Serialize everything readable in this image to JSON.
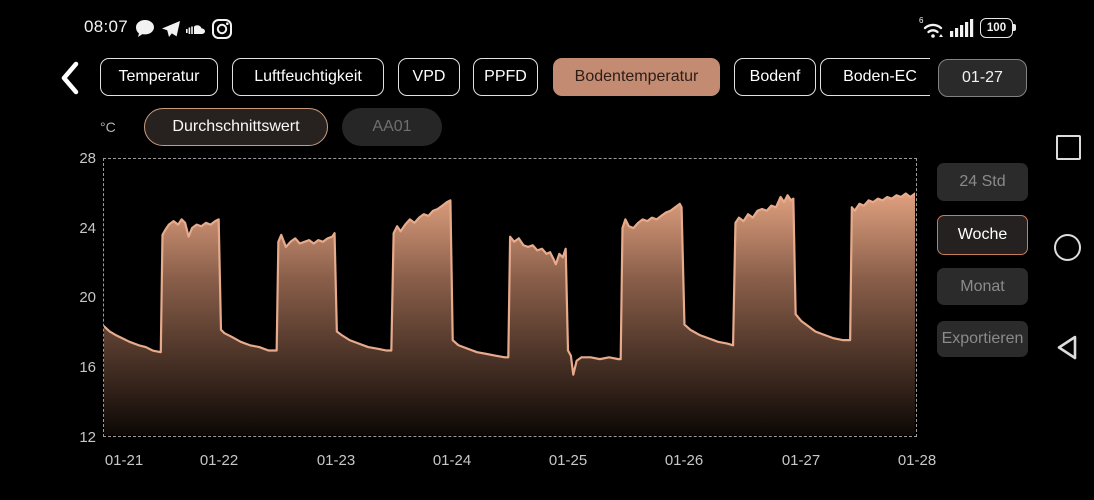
{
  "status_bar": {
    "time": "08:07",
    "left_icons": [
      "chat-icon",
      "telegram-icon",
      "soundcloud-icon",
      "instagram-icon"
    ],
    "wifi_label": "6",
    "battery_level": "100"
  },
  "header": {
    "tabs": [
      {
        "label": "Temperatur",
        "selected": false
      },
      {
        "label": "Luftfeuchtigkeit",
        "selected": false
      },
      {
        "label": "VPD",
        "selected": false
      },
      {
        "label": "PPFD",
        "selected": false
      },
      {
        "label": "Bodentemperatur",
        "selected": true
      },
      {
        "label": "Bodenf",
        "selected": false
      },
      {
        "label": "Boden-EC",
        "selected": false
      }
    ],
    "date_button": "01-27"
  },
  "controls": {
    "unit_label": "°C",
    "toggles": [
      {
        "label": "Durchschnittswert",
        "active": true
      },
      {
        "label": "AA01",
        "active": false
      }
    ]
  },
  "side_panel": {
    "buttons": [
      {
        "label": "24 Std",
        "selected": false
      },
      {
        "label": "Woche",
        "selected": true
      },
      {
        "label": "Monat",
        "selected": false
      },
      {
        "label": "Exportieren",
        "selected": false
      }
    ]
  },
  "chart_data": {
    "type": "area",
    "title": "Bodentemperatur Durchschnittswert, Woche",
    "ylabel": "°C",
    "ylim": [
      12,
      28
    ],
    "x_domain": [
      0,
      7
    ],
    "grid": false,
    "yticks": [
      "28",
      "24",
      "20",
      "16",
      "12"
    ],
    "xticks": [
      "01-21",
      "01-22",
      "01-23",
      "01-24",
      "01-25",
      "01-26",
      "01-27",
      "01-28"
    ],
    "colors": {
      "line": "#e7ab8c",
      "gradient_top": "#dfa07f",
      "gradient_mid": "#8a5f4a",
      "gradient_bottom": "#0d0805"
    },
    "series": [
      {
        "name": "Durchschnittswert",
        "points": [
          [
            0,
            18.3
          ],
          [
            0.05,
            18.0
          ],
          [
            0.1,
            17.8
          ],
          [
            0.16,
            17.6
          ],
          [
            0.22,
            17.4
          ],
          [
            0.3,
            17.2
          ],
          [
            0.36,
            17.1
          ],
          [
            0.42,
            16.9
          ],
          [
            0.49,
            16.8
          ],
          [
            0.505,
            23.6
          ],
          [
            0.53,
            23.9
          ],
          [
            0.56,
            24.2
          ],
          [
            0.6,
            24.4
          ],
          [
            0.64,
            24.2
          ],
          [
            0.67,
            24.5
          ],
          [
            0.7,
            24.3
          ],
          [
            0.73,
            23.5
          ],
          [
            0.76,
            24.0
          ],
          [
            0.8,
            24.2
          ],
          [
            0.84,
            24.1
          ],
          [
            0.88,
            24.3
          ],
          [
            0.92,
            24.2
          ],
          [
            0.96,
            24.4
          ],
          [
            0.99,
            24.5
          ],
          [
            1.01,
            18.1
          ],
          [
            1.04,
            17.9
          ],
          [
            1.1,
            17.7
          ],
          [
            1.18,
            17.4
          ],
          [
            1.26,
            17.2
          ],
          [
            1.34,
            17.1
          ],
          [
            1.42,
            16.9
          ],
          [
            1.49,
            16.9
          ],
          [
            1.505,
            23.2
          ],
          [
            1.53,
            23.6
          ],
          [
            1.57,
            22.9
          ],
          [
            1.61,
            23.2
          ],
          [
            1.65,
            23.4
          ],
          [
            1.69,
            23.1
          ],
          [
            1.73,
            23.2
          ],
          [
            1.77,
            23.3
          ],
          [
            1.81,
            23.1
          ],
          [
            1.85,
            23.3
          ],
          [
            1.89,
            23.2
          ],
          [
            1.93,
            23.4
          ],
          [
            1.97,
            23.5
          ],
          [
            1.99,
            23.7
          ],
          [
            2.01,
            18.0
          ],
          [
            2.05,
            17.8
          ],
          [
            2.12,
            17.5
          ],
          [
            2.2,
            17.3
          ],
          [
            2.28,
            17.1
          ],
          [
            2.36,
            17.0
          ],
          [
            2.44,
            16.9
          ],
          [
            2.48,
            16.9
          ],
          [
            2.5,
            23.7
          ],
          [
            2.53,
            24.1
          ],
          [
            2.56,
            23.8
          ],
          [
            2.6,
            24.2
          ],
          [
            2.64,
            24.5
          ],
          [
            2.68,
            24.3
          ],
          [
            2.72,
            24.6
          ],
          [
            2.76,
            24.8
          ],
          [
            2.8,
            24.7
          ],
          [
            2.84,
            25.0
          ],
          [
            2.88,
            25.1
          ],
          [
            2.92,
            25.3
          ],
          [
            2.96,
            25.5
          ],
          [
            2.99,
            25.6
          ],
          [
            3.01,
            17.5
          ],
          [
            3.06,
            17.2
          ],
          [
            3.14,
            17.0
          ],
          [
            3.22,
            16.8
          ],
          [
            3.3,
            16.7
          ],
          [
            3.38,
            16.6
          ],
          [
            3.46,
            16.5
          ],
          [
            3.49,
            16.5
          ],
          [
            3.505,
            23.5
          ],
          [
            3.54,
            23.2
          ],
          [
            3.58,
            23.4
          ],
          [
            3.62,
            23.0
          ],
          [
            3.66,
            22.9
          ],
          [
            3.7,
            23.0
          ],
          [
            3.74,
            22.7
          ],
          [
            3.78,
            22.8
          ],
          [
            3.82,
            22.5
          ],
          [
            3.85,
            22.6
          ],
          [
            3.88,
            22.2
          ],
          [
            3.9,
            21.9
          ],
          [
            3.93,
            22.5
          ],
          [
            3.96,
            22.3
          ],
          [
            3.985,
            22.8
          ],
          [
            4.005,
            16.9
          ],
          [
            4.03,
            16.6
          ],
          [
            4.05,
            15.5
          ],
          [
            4.08,
            16.3
          ],
          [
            4.12,
            16.5
          ],
          [
            4.2,
            16.5
          ],
          [
            4.28,
            16.4
          ],
          [
            4.36,
            16.5
          ],
          [
            4.44,
            16.4
          ],
          [
            4.46,
            16.4
          ],
          [
            4.475,
            24.0
          ],
          [
            4.5,
            24.5
          ],
          [
            4.53,
            24.1
          ],
          [
            4.57,
            24.0
          ],
          [
            4.61,
            24.3
          ],
          [
            4.65,
            24.5
          ],
          [
            4.69,
            24.4
          ],
          [
            4.73,
            24.6
          ],
          [
            4.77,
            24.5
          ],
          [
            4.81,
            24.7
          ],
          [
            4.85,
            24.9
          ],
          [
            4.89,
            25.0
          ],
          [
            4.93,
            25.2
          ],
          [
            4.97,
            25.4
          ],
          [
            4.985,
            25.2
          ],
          [
            5.01,
            18.4
          ],
          [
            5.06,
            18.1
          ],
          [
            5.14,
            17.8
          ],
          [
            5.22,
            17.6
          ],
          [
            5.3,
            17.4
          ],
          [
            5.38,
            17.3
          ],
          [
            5.43,
            17.2
          ],
          [
            5.45,
            24.3
          ],
          [
            5.48,
            24.6
          ],
          [
            5.52,
            24.4
          ],
          [
            5.56,
            24.8
          ],
          [
            5.6,
            24.6
          ],
          [
            5.64,
            25.0
          ],
          [
            5.68,
            25.1
          ],
          [
            5.72,
            25.0
          ],
          [
            5.76,
            25.3
          ],
          [
            5.8,
            25.2
          ],
          [
            5.84,
            25.8
          ],
          [
            5.87,
            25.5
          ],
          [
            5.9,
            25.9
          ],
          [
            5.93,
            25.6
          ],
          [
            5.95,
            25.7
          ],
          [
            5.97,
            19.0
          ],
          [
            6.02,
            18.6
          ],
          [
            6.08,
            18.3
          ],
          [
            6.14,
            18.0
          ],
          [
            6.22,
            17.8
          ],
          [
            6.3,
            17.6
          ],
          [
            6.38,
            17.5
          ],
          [
            6.44,
            17.5
          ],
          [
            6.455,
            25.2
          ],
          [
            6.48,
            25.0
          ],
          [
            6.52,
            25.4
          ],
          [
            6.56,
            25.3
          ],
          [
            6.6,
            25.6
          ],
          [
            6.64,
            25.5
          ],
          [
            6.68,
            25.7
          ],
          [
            6.72,
            25.6
          ],
          [
            6.76,
            25.8
          ],
          [
            6.8,
            25.7
          ],
          [
            6.84,
            25.9
          ],
          [
            6.88,
            25.8
          ],
          [
            6.92,
            26.0
          ],
          [
            6.96,
            25.8
          ],
          [
            7.0,
            26.0
          ]
        ]
      }
    ]
  }
}
